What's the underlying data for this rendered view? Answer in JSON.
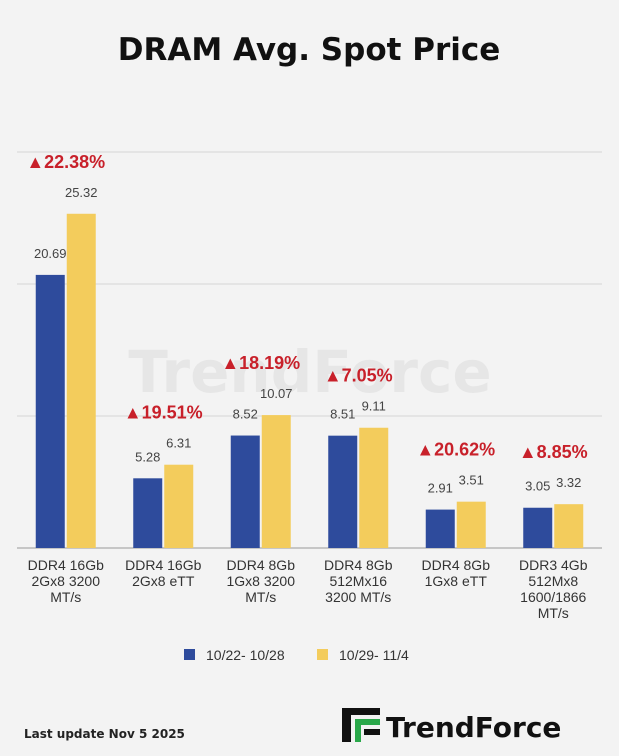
{
  "chart_data": {
    "type": "bar",
    "title": "DRAM Avg. Spot Price",
    "xlabel": "",
    "ylabel": "",
    "ylim": [
      0,
      30
    ],
    "grid": true,
    "legend_position": "bottom",
    "categories": [
      [
        "DDR4 16Gb",
        "2Gx8 3200",
        "MT/s"
      ],
      [
        "DDR4 16Gb",
        "2Gx8 eTT"
      ],
      [
        "DDR4 8Gb",
        "1Gx8 3200",
        "MT/s"
      ],
      [
        "DDR4 8Gb",
        "512Mx16",
        "3200 MT/s"
      ],
      [
        "DDR4 8Gb",
        "1Gx8 eTT"
      ],
      [
        "DDR3 4Gb",
        "512Mx8",
        "1600/1866",
        "MT/s"
      ]
    ],
    "series": [
      {
        "name": "10/22- 10/28",
        "color": "#2e4b9c",
        "values": [
          20.69,
          5.28,
          8.52,
          8.51,
          2.91,
          3.05
        ]
      },
      {
        "name": "10/29- 11/4",
        "color": "#f3cc5c",
        "values": [
          25.32,
          6.31,
          10.07,
          9.11,
          3.51,
          3.32
        ]
      }
    ],
    "value_labels": [
      [
        "20.69",
        "5.28",
        "8.52",
        "8.51",
        "2.91",
        "3.05"
      ],
      [
        "25.32",
        "6.31",
        "10.07",
        "9.11",
        "3.51",
        "3.32"
      ]
    ],
    "changes": [
      "▲22.38%",
      "▲19.51%",
      "▲18.19%",
      "▲7.05%",
      "▲20.62%",
      "▲8.85%"
    ],
    "change_color": "#c8202a"
  },
  "footer": {
    "last_update": "Last update Nov 5  2025",
    "brand": "TrendForce"
  },
  "watermark": "TrendForce"
}
